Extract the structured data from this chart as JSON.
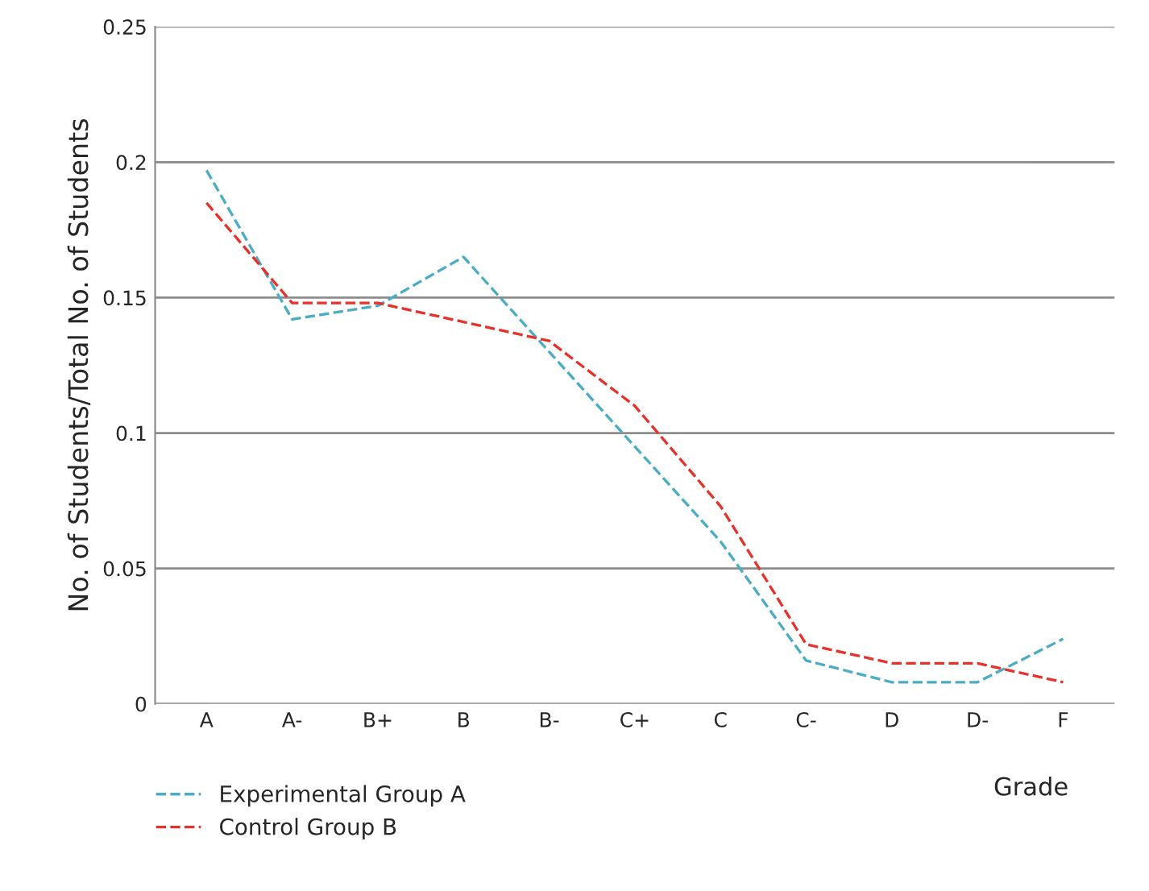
{
  "chart_data": {
    "type": "line",
    "xlabel": "Grade",
    "ylabel": "No. of Students/Total No. of Students",
    "categories": [
      "A",
      "A-",
      "B+",
      "B",
      "B-",
      "C+",
      "C",
      "C-",
      "D",
      "D-",
      "F"
    ],
    "series": [
      {
        "name": "Experimental Group A",
        "color": "#4bacc6",
        "values": [
          0.197,
          0.142,
          0.147,
          0.165,
          0.13,
          0.095,
          0.06,
          0.016,
          0.008,
          0.008,
          0.024
        ]
      },
      {
        "name": "Control Group B",
        "color": "#e8312a",
        "values": [
          0.185,
          0.148,
          0.148,
          0.141,
          0.134,
          0.11,
          0.073,
          0.022,
          0.015,
          0.015,
          0.008
        ]
      }
    ],
    "ylim": [
      0,
      0.25
    ],
    "yticks": [
      {
        "value": 0,
        "label": "0"
      },
      0.05,
      0.1,
      0.15,
      0.2,
      0.25
    ],
    "grid": "y",
    "legend": "bottom left",
    "line_style": "dashed",
    "marker": "none"
  }
}
